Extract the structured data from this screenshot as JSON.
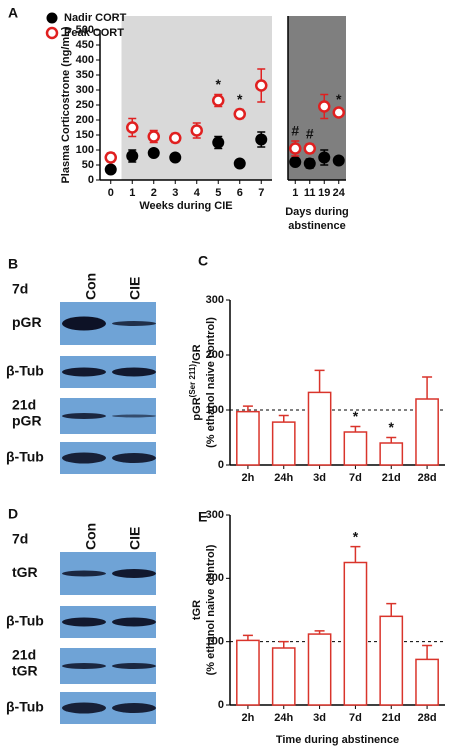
{
  "chart_data": [
    {
      "type": "dot",
      "panel": "A",
      "ylabel": [
        {
          "text": "Plasma Corticostrone (ng/mL)"
        }
      ],
      "xlabel": [
        "Weeks during CIE"
      ],
      "categories": [
        "0",
        "1",
        "2",
        "3",
        "4",
        "5",
        "6",
        "7"
      ],
      "ylim": [
        0,
        500
      ],
      "yticks": [
        0,
        50,
        100,
        150,
        200,
        250,
        300,
        350,
        400,
        450,
        500
      ],
      "shade": {
        "from": "1",
        "to": "7",
        "color": "#d9d9d9"
      },
      "legend": "top-left",
      "series": [
        {
          "name": "Nadir CORT",
          "color": "#000000",
          "marker": "filled",
          "values": [
            35,
            80,
            90,
            75,
            null,
            125,
            55,
            135
          ],
          "errors": [
            10,
            20,
            10,
            10,
            null,
            20,
            8,
            25
          ]
        },
        {
          "name": "Peak CORT",
          "color": "#e02020",
          "marker": "open",
          "values": [
            75,
            175,
            145,
            140,
            165,
            265,
            220,
            315
          ],
          "errors": [
            15,
            30,
            20,
            15,
            25,
            20,
            15,
            55
          ]
        }
      ],
      "annotations": [
        {
          "text": "*",
          "category": "5"
        },
        {
          "text": "*",
          "category": "6"
        }
      ]
    },
    {
      "type": "dot",
      "xlabel": [
        "Days during",
        "abstinence"
      ],
      "categories": [
        "1",
        "11",
        "19",
        "24"
      ],
      "ylim": [
        0,
        500
      ],
      "background": "#7f7f7f",
      "series": [
        {
          "color": "#000000",
          "marker": "filled",
          "values": [
            60,
            55,
            75,
            65
          ],
          "errors": [
            10,
            15,
            25,
            10
          ]
        },
        {
          "color": "#e02020",
          "marker": "open",
          "values": [
            105,
            105,
            245,
            225
          ],
          "errors": [
            25,
            15,
            40,
            10
          ]
        }
      ],
      "annotations": [
        {
          "text": "#",
          "category": "1"
        },
        {
          "text": "#",
          "category": "11"
        },
        {
          "text": "*",
          "category": "24"
        }
      ]
    },
    {
      "type": "bar",
      "panel": "C",
      "ylabel": [
        {
          "text": "pGR"
        },
        {
          "text": "(Ser 211)",
          "sup": true
        },
        {
          "text": "/GR"
        }
      ],
      "ylabel2": "(% ethanol naive control)",
      "categories": [
        "2h",
        "24h",
        "3d",
        "7d",
        "21d",
        "28d"
      ],
      "values": [
        97,
        78,
        132,
        60,
        40,
        120
      ],
      "errors": [
        10,
        12,
        40,
        10,
        10,
        40
      ],
      "color": "#d9342b",
      "refline": 100,
      "ylim": [
        0,
        300
      ],
      "yticks": [
        0,
        100,
        200,
        300
      ],
      "annotations": [
        {
          "text": "*",
          "category": "7d"
        },
        {
          "text": "*",
          "category": "21d"
        }
      ]
    },
    {
      "type": "bar",
      "panel": "E",
      "ylabel": [
        {
          "text": "tGR"
        }
      ],
      "ylabel2": "(% ethanol naive control)",
      "xlabel": [
        "Time during abstinence"
      ],
      "categories": [
        "2h",
        "24h",
        "3d",
        "7d",
        "21d",
        "28d"
      ],
      "values": [
        102,
        90,
        112,
        225,
        140,
        72
      ],
      "errors": [
        8,
        10,
        5,
        25,
        20,
        22
      ],
      "color": "#d9342b",
      "refline": 100,
      "ylim": [
        0,
        300
      ],
      "yticks": [
        0,
        100,
        200,
        300
      ],
      "annotations": [
        {
          "text": "*",
          "category": "7d"
        }
      ]
    }
  ],
  "blots": [
    {
      "panel": "B",
      "lanes": [
        "Con",
        "CIE"
      ],
      "groups": [
        {
          "time": "7d",
          "rows": [
            "pGR",
            "β-Tub"
          ]
        },
        {
          "time": "21d",
          "rows": [
            "pGR",
            "β-Tub"
          ]
        }
      ]
    },
    {
      "panel": "D",
      "lanes": [
        "Con",
        "CIE"
      ],
      "groups": [
        {
          "time": "7d",
          "rows": [
            "tGR",
            "β-Tub"
          ]
        },
        {
          "time": "21d",
          "rows": [
            "tGR",
            "β-Tub"
          ]
        }
      ]
    }
  ]
}
